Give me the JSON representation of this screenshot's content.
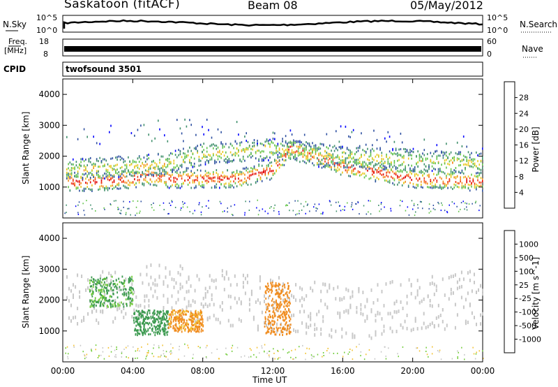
{
  "header": {
    "station": "Saskatoon (fitACF)",
    "beam": "Beam 08",
    "date": "05/May/2012"
  },
  "top_panels": {
    "nsky_label": "N.Sky",
    "nsky_ticks": [
      "10^5",
      "10^0"
    ],
    "nsearch_label": "N.Search",
    "nsearch_ticks": [
      "10^5",
      "10^0"
    ],
    "freq_label": "Freq.",
    "freq_unit": "[MHz]",
    "freq_ticks": [
      "18",
      "8"
    ],
    "nave_label": "Nave",
    "nave_ticks": [
      "60",
      "0"
    ],
    "cpid_label": "CPID",
    "program": "twofsound 3501"
  },
  "chart_data": [
    {
      "type": "heatmap",
      "quantity": "Power",
      "ylabel": "Slant Range [km]",
      "ylim": [
        0,
        4500
      ],
      "yticks": [
        "4000",
        "3000",
        "2000",
        "1000"
      ],
      "xlim": [
        "00:00",
        "24:00"
      ],
      "colorbar_label": "Power [dB]",
      "colorbar_ticks": [
        "28",
        "24",
        "20",
        "16",
        "12",
        "8",
        "4"
      ],
      "colors": [
        "#0000ff",
        "#2c4ea0",
        "#3f8f6b",
        "#62c44a",
        "#e8c81e",
        "#f58a1e",
        "#f03c14",
        "#e00000"
      ],
      "bands": [
        {
          "x": [
            0,
            2,
            4,
            5,
            6,
            8,
            10,
            12,
            13,
            16,
            20,
            24
          ],
          "y": [
            1200,
            1200,
            1300,
            1400,
            1300,
            1300,
            1300,
            1600,
            2300,
            1700,
            1300,
            1200
          ],
          "value": 26
        },
        {
          "x": [
            0,
            2,
            4,
            6,
            8,
            10,
            12,
            13,
            16,
            20,
            24
          ],
          "y": [
            1550,
            1650,
            1700,
            1800,
            2100,
            2200,
            2250,
            2200,
            2000,
            1900,
            1800
          ],
          "value": 18
        },
        {
          "x": [
            0,
            4,
            8,
            12,
            16,
            20,
            24
          ],
          "y": [
            2600,
            2800,
            2900,
            2700,
            2700,
            2500,
            2300
          ],
          "value": 8
        }
      ]
    },
    {
      "type": "heatmap",
      "quantity": "Velocity",
      "ylabel": "Slant Range [km]",
      "ylim": [
        0,
        4500
      ],
      "yticks": [
        "4000",
        "3000",
        "2000",
        "1000"
      ],
      "xlim": [
        "00:00",
        "24:00"
      ],
      "xticks": [
        "00:00",
        "04:00",
        "08:00",
        "12:00",
        "16:00",
        "20:00",
        "00:00"
      ],
      "xlabel": "Time UT",
      "colorbar_label": "Velocity [m s^-1]",
      "colorbar_ticks": [
        "1000",
        "500",
        "100",
        "25",
        "-25",
        "-100",
        "-500",
        "-1000"
      ],
      "colors": [
        "#1a3aa8",
        "#2a6e86",
        "#3c9a50",
        "#72cc3a",
        "#c8c8c8",
        "#f2c232",
        "#f08c1e",
        "#f0501a",
        "#e00000"
      ],
      "patches": [
        {
          "x": [
            1.5,
            4
          ],
          "y": [
            1800,
            2800
          ],
          "value": 120
        },
        {
          "x": [
            4,
            6
          ],
          "y": [
            900,
            1700
          ],
          "value": 300
        },
        {
          "x": [
            6,
            8
          ],
          "y": [
            1000,
            1700
          ],
          "value": -150
        },
        {
          "x": [
            11.5,
            13
          ],
          "y": [
            900,
            2600
          ],
          "value": -300
        },
        {
          "x": [
            0,
            24
          ],
          "y": [
            1000,
            3000
          ],
          "value": 0
        }
      ]
    }
  ]
}
